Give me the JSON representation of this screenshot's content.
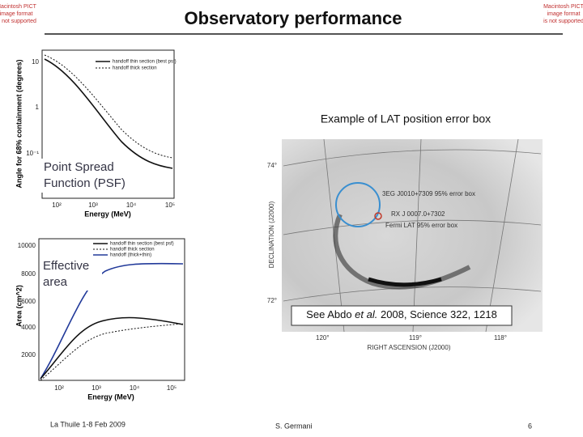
{
  "header": {
    "title": "Observatory performance",
    "placeholder_left": [
      "Macintosh PICT",
      "image format",
      "is not supported"
    ],
    "placeholder_right": [
      "Macintosh PICT",
      "image format",
      "is not supported"
    ]
  },
  "psf_plot": {
    "ylabel": "Angle for 68% containment (degrees)",
    "xlabel": "Energy (MeV)",
    "legend": [
      "handoff thin section (best psf)",
      "handoff thick section"
    ],
    "yticks": [
      "10",
      "1",
      "10⁻¹"
    ],
    "xticks": [
      "10²",
      "10³",
      "10⁴",
      "10⁵"
    ],
    "caption": [
      "Point Spread",
      "Function (PSF)"
    ]
  },
  "area_plot": {
    "ylabel": "Area (cm^2)",
    "xlabel": "Energy (MeV)",
    "legend": [
      "handoff thin section (best psf)",
      "handoff thick section",
      "handoff (thick+thin)"
    ],
    "yticks": [
      "10000",
      "8000",
      "6000",
      "4000",
      "2000"
    ],
    "xticks": [
      "10²",
      "10³",
      "10⁴",
      "10⁵"
    ],
    "caption": [
      "Effective",
      "area"
    ]
  },
  "sky_map": {
    "title": "Example of LAT position error box",
    "labels": [
      "3EG J0010+7309 95% error box",
      "RX J 0007.0+7302",
      "Fermi LAT 95% error box"
    ],
    "ylabel": "DECLINATION (J2000)",
    "xlabel": "RIGHT ASCENSION (J2000)",
    "xticks": [
      "120°",
      "119°",
      "118°"
    ],
    "yticks": [
      "74°",
      "72°"
    ],
    "citation": [
      "See Abdo ",
      "et al.",
      " 2008, Science  322, 1218"
    ]
  },
  "footer": {
    "left": "La Thuile 1-8 Feb 2009",
    "center": "S. Germani",
    "page": "6"
  }
}
